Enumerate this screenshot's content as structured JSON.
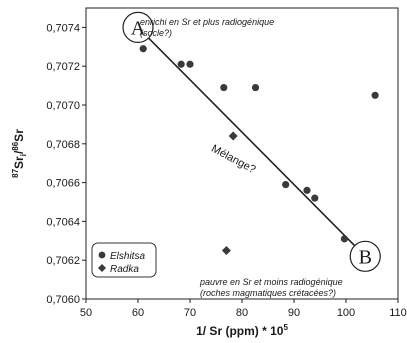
{
  "chart_data": {
    "type": "scatter",
    "xlabel": "1/ Sr (ppm) * 10",
    "xlabel_sup": "5",
    "ylabel_parts": [
      "87",
      "Sr",
      "i",
      "/",
      "86",
      "Sr"
    ],
    "xlim": [
      50,
      110
    ],
    "ylim": [
      0.706,
      0.7075
    ],
    "x_ticks": [
      50,
      60,
      70,
      80,
      90,
      100,
      110
    ],
    "x_tick_labels": [
      "50",
      "60",
      "70",
      "80",
      "90",
      "100",
      "110"
    ],
    "y_ticks": [
      0.706,
      0.7062,
      0.7064,
      0.7066,
      0.7068,
      0.707,
      0.7072,
      0.7074
    ],
    "y_tick_labels": [
      "0,7060",
      "0,7062",
      "0,7064",
      "0,7066",
      "0,7068",
      "0,7070",
      "0,7072",
      "0,7074"
    ],
    "grid": false,
    "legend_position": "bottom-left",
    "series": [
      {
        "name": "Elshitsa",
        "marker": "circle",
        "color": "#3a3a3a",
        "points": [
          [
            61.0,
            0.70729
          ],
          [
            68.3,
            0.70721
          ],
          [
            70.0,
            0.70721
          ],
          [
            76.5,
            0.70709
          ],
          [
            82.6,
            0.70709
          ],
          [
            88.4,
            0.70659
          ],
          [
            92.5,
            0.70656
          ],
          [
            94.0,
            0.70652
          ],
          [
            99.7,
            0.70631
          ],
          [
            105.6,
            0.70705
          ]
        ]
      },
      {
        "name": "Radka",
        "marker": "diamond",
        "color": "#3a3a3a",
        "points": [
          [
            78.3,
            0.70684
          ],
          [
            77.0,
            0.70625
          ]
        ]
      }
    ],
    "mixing_line": {
      "from": [
        60.0,
        0.7074
      ],
      "to": [
        103.7,
        0.70622
      ]
    },
    "annotations": {
      "end_a_label": "A",
      "end_b_label": "B",
      "end_a_text_1": "enrichi en Sr et plus radiogénique",
      "end_a_text_2": "(socle?)",
      "end_b_text_1": "pauvre en Sr et moins radiogénique",
      "end_b_text_2": "(roches magmatiques crétacées?)",
      "line_text": "Mélange?"
    }
  }
}
